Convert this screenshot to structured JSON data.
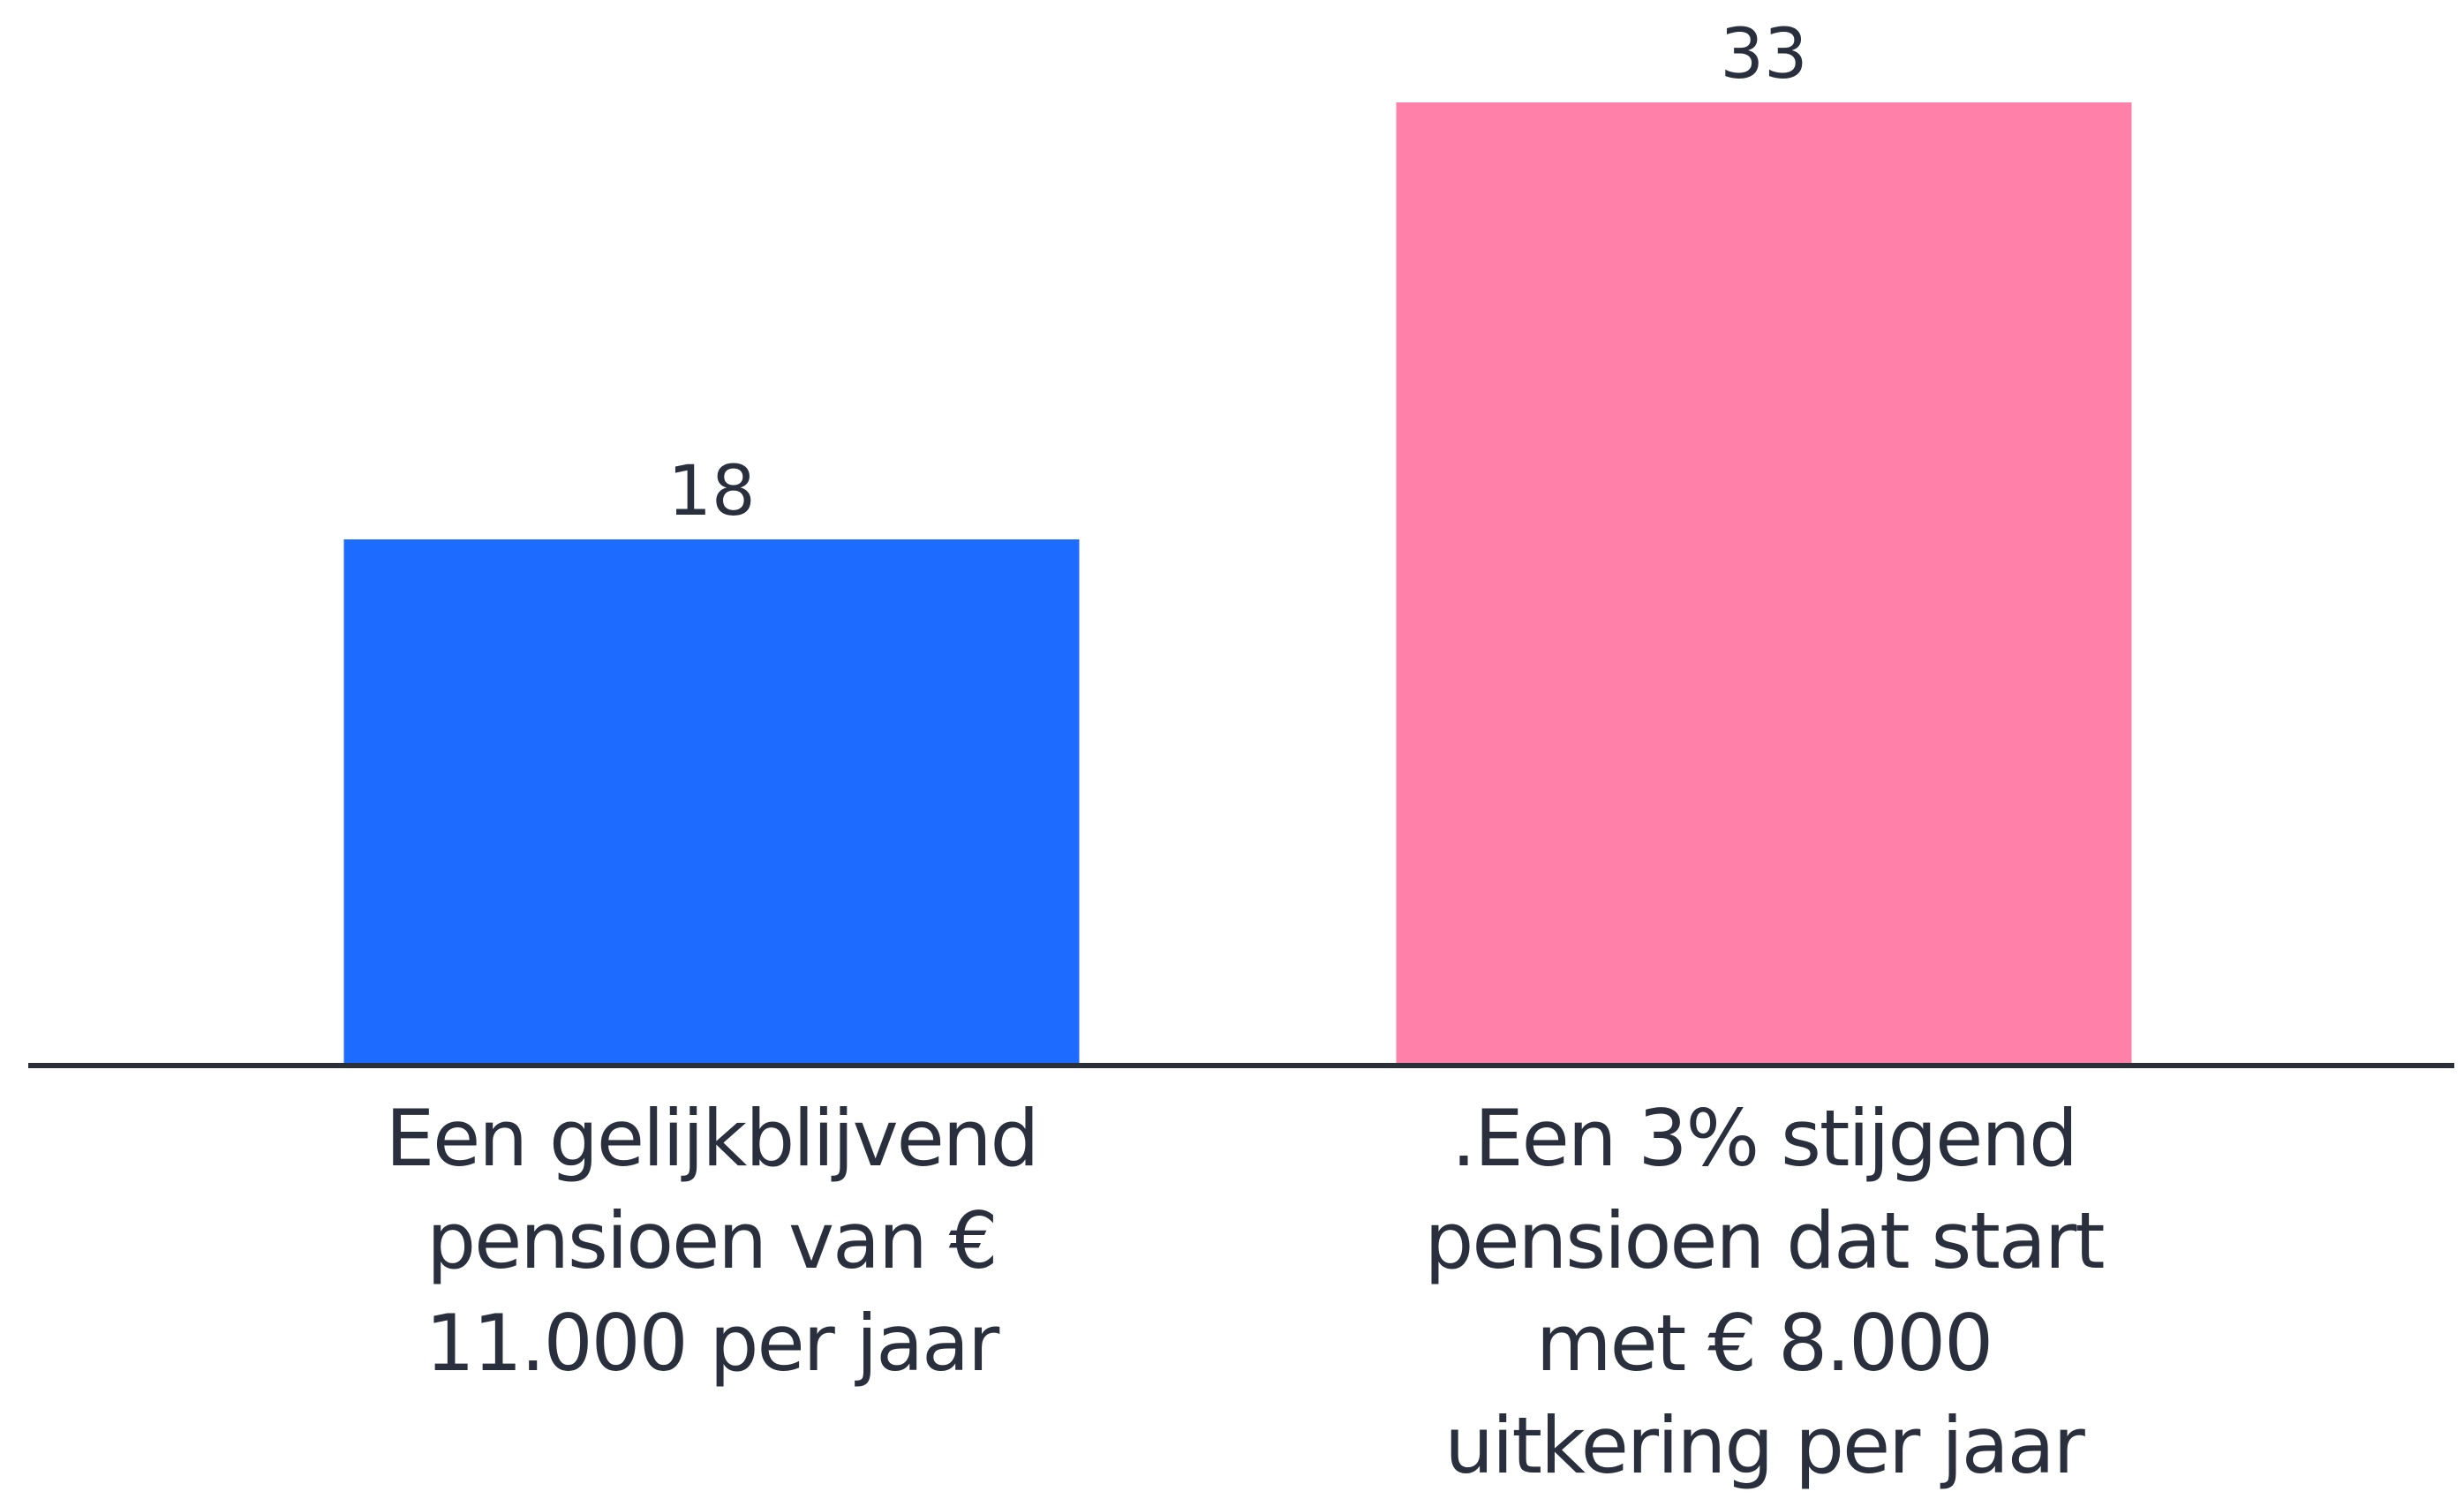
{
  "chart_data": {
    "type": "bar",
    "categories": [
      "Een gelijkblijvend pensioen van € 11.000 per jaar",
      ".Een 3% stijgend pensioen dat start met € 8.000 uitkering per jaar"
    ],
    "values": [
      18,
      33
    ],
    "colors": [
      "#1e6bff",
      "#ff80a8"
    ]
  }
}
